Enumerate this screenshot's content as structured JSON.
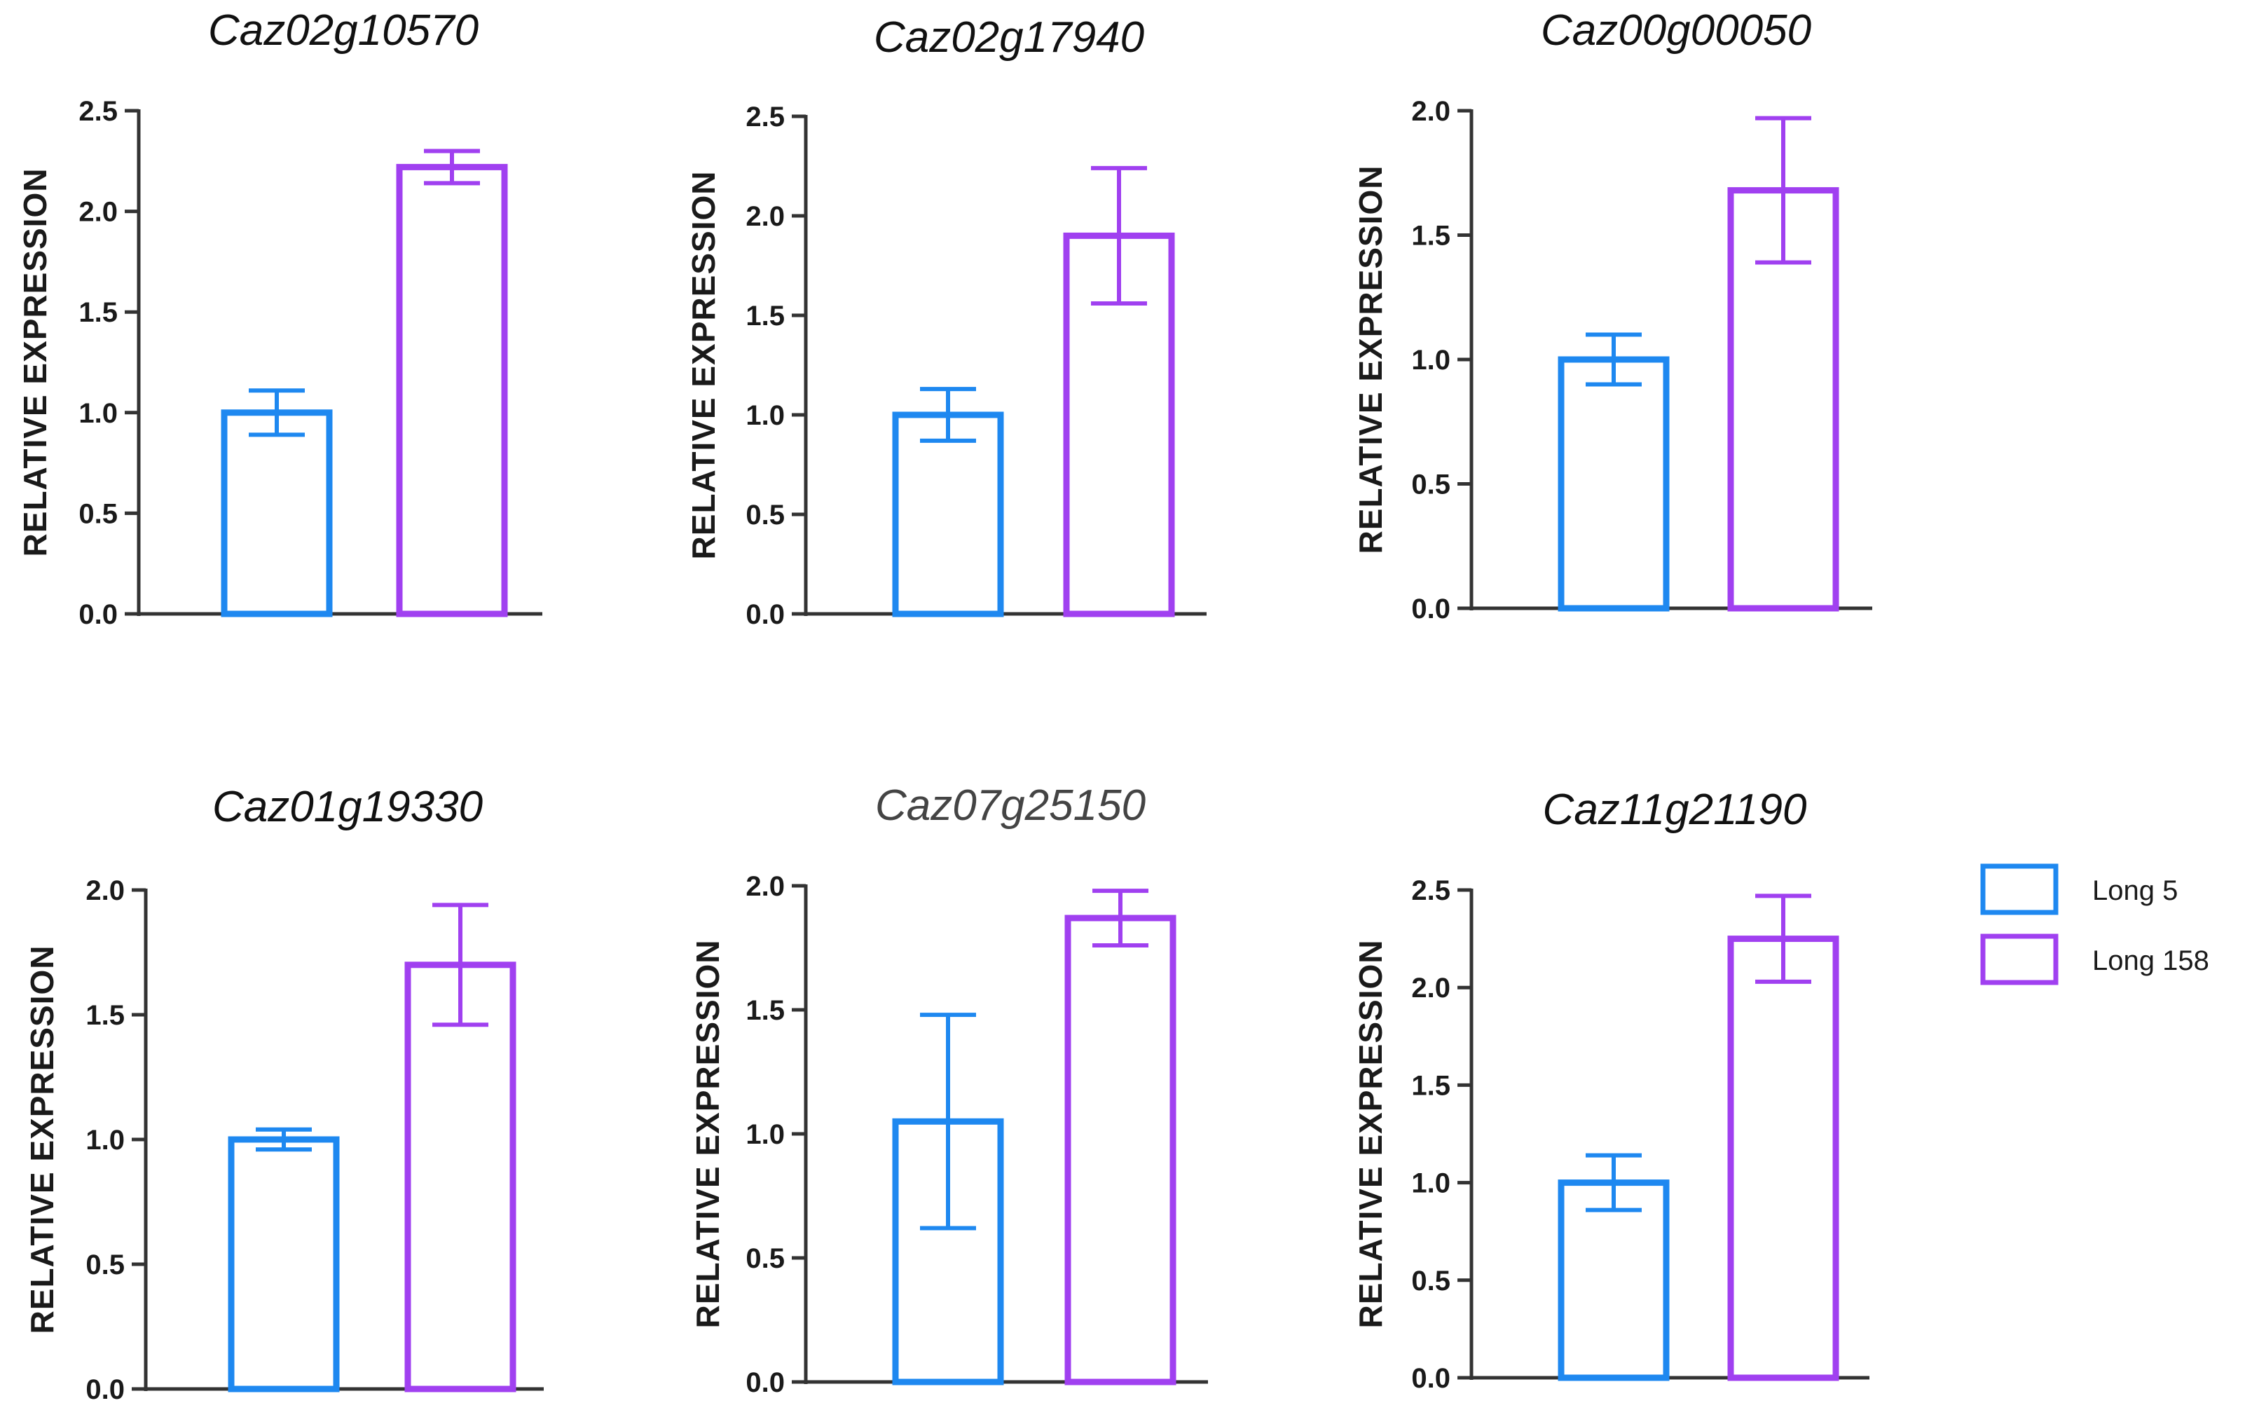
{
  "series_names": [
    "Long 5",
    "Long 158"
  ],
  "colors": {
    "long5": "#1e88f0",
    "long158": "#a040f0",
    "axis": "#333333"
  },
  "legend": [
    {
      "label": "Long 5",
      "color": "#1e88f0"
    },
    {
      "label": "Long 158",
      "color": "#a040f0"
    }
  ],
  "chart_data": [
    {
      "type": "bar",
      "title": "Caz02g10570",
      "ylabel": "RELATIVE EXPRESSION",
      "ylim": [
        0,
        2.5
      ],
      "yticks": [
        "0.0",
        "0.5",
        "1.0",
        "1.5",
        "2.0",
        "2.5"
      ],
      "categories": [
        "Long 5",
        "Long 158"
      ],
      "values": [
        1.0,
        2.22
      ],
      "errors": [
        0.11,
        0.08
      ]
    },
    {
      "type": "bar",
      "title": "Caz02g17940",
      "ylabel": "RELATIVE EXPRESSION",
      "ylim": [
        0,
        2.5
      ],
      "yticks": [
        "0.0",
        "0.5",
        "1.0",
        "1.5",
        "2.0",
        "2.5"
      ],
      "categories": [
        "Long 5",
        "Long 158"
      ],
      "values": [
        1.0,
        1.9
      ],
      "errors": [
        0.13,
        0.34
      ]
    },
    {
      "type": "bar",
      "title": "Caz00g00050",
      "ylabel": "RELATIVE EXPRESSION",
      "ylim": [
        0,
        2.0
      ],
      "yticks": [
        "0.0",
        "0.5",
        "1.0",
        "1.5",
        "2.0"
      ],
      "categories": [
        "Long 5",
        "Long 158"
      ],
      "values": [
        1.0,
        1.68
      ],
      "errors": [
        0.1,
        0.29
      ]
    },
    {
      "type": "bar",
      "title": "Caz01g19330",
      "ylabel": "RELATIVE EXPRESSION",
      "ylim": [
        0,
        2.0
      ],
      "yticks": [
        "0.0",
        "0.5",
        "1.0",
        "1.5",
        "2.0"
      ],
      "categories": [
        "Long 5",
        "Long 158"
      ],
      "values": [
        1.0,
        1.7
      ],
      "errors": [
        0.04,
        0.24
      ]
    },
    {
      "type": "bar",
      "title": "Caz07g25150",
      "ylabel": "RELATIVE EXPRESSION",
      "ylim": [
        0,
        2.0
      ],
      "yticks": [
        "0.0",
        "0.5",
        "1.0",
        "1.5",
        "2.0"
      ],
      "categories": [
        "Long 5",
        "Long 158"
      ],
      "values": [
        1.05,
        1.87
      ],
      "errors": [
        0.43,
        0.11
      ]
    },
    {
      "type": "bar",
      "title": "Caz11g21190",
      "ylabel": "RELATIVE EXPRESSION",
      "ylim": [
        0,
        2.5
      ],
      "yticks": [
        "0.0",
        "0.5",
        "1.0",
        "1.5",
        "2.0",
        "2.5"
      ],
      "categories": [
        "Long 5",
        "Long 158"
      ],
      "values": [
        1.0,
        2.25
      ],
      "errors": [
        0.14,
        0.22
      ]
    }
  ]
}
